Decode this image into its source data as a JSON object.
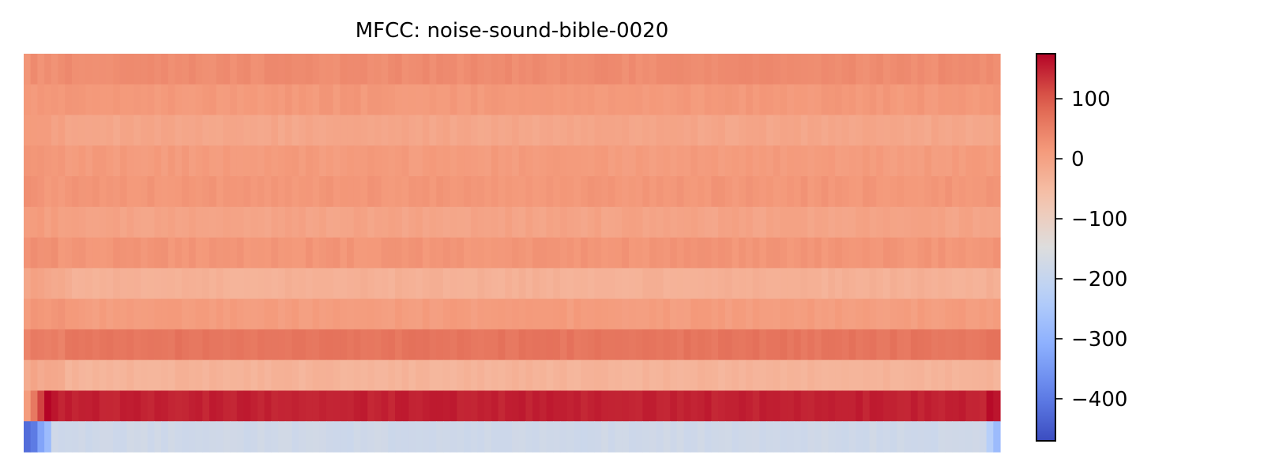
{
  "chart_data": {
    "type": "heatmap",
    "title": "MFCC: noise-sound-bible-0020",
    "n_coefficients": 13,
    "n_frames": 142,
    "colormap": "coolwarm",
    "value_range": [
      -470,
      175
    ],
    "colorbar": {
      "ticks": [
        100,
        0,
        -100,
        -200,
        -300,
        -400
      ],
      "tick_labels": [
        "100",
        "0",
        "−100",
        "−200",
        "−300",
        "−400"
      ]
    },
    "row_means_top_to_bottom": [
      33,
      15,
      -10,
      10,
      18,
      -5,
      20,
      -30,
      8,
      65,
      -35,
      150,
      -180
    ],
    "onset_frames": {
      "first_frames_values_bottom_row": [
        -420,
        -400,
        -330,
        -280
      ],
      "first_frames_values_row_12": [
        10,
        60,
        120,
        175,
        160
      ]
    },
    "tail_frames": {
      "last_frame_values_bottom_row": [
        -230,
        -280
      ],
      "last_frame_values_row_12": [
        170,
        160
      ]
    },
    "axes_visible": false
  }
}
